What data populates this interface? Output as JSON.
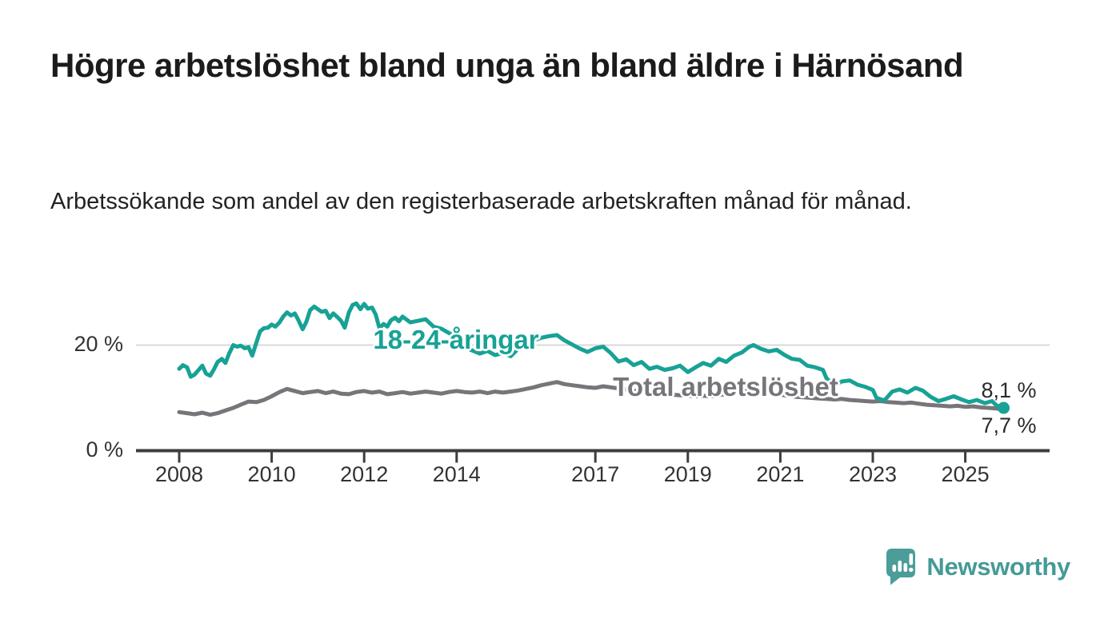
{
  "header": {
    "title": "Högre arbetslöshet bland unga än bland äldre i Härnösand",
    "subtitle": "Arbetssökande som andel av den registerbaserade arbetskraften månad för månad."
  },
  "colors": {
    "youth": "#17a295",
    "total": "#77757a",
    "grid": "#d9d9d9",
    "axis": "#3d3d40",
    "tick_text": "#333333",
    "value_text": "#2b2b2b",
    "brand": "#459a96"
  },
  "footer": {
    "brand": "Newsworthy"
  },
  "chart_data": {
    "type": "line",
    "unit": "%",
    "ylim": [
      0,
      30
    ],
    "x_range": [
      2008.0,
      2025.83
    ],
    "grid": "horizontal-only",
    "legend_position": "inline-labels-on-lines",
    "yticks": [
      {
        "value": 0,
        "label": "0 %"
      },
      {
        "value": 20,
        "label": "20 %"
      }
    ],
    "xticks": [
      2008,
      2010,
      2012,
      2014,
      2017,
      2019,
      2021,
      2023,
      2025
    ],
    "series": [
      {
        "name": "18-24-åringar",
        "color_key": "youth",
        "end_label": "8,1 %",
        "end_marker": true,
        "points": [
          [
            2008.0,
            15.5
          ],
          [
            2008.08,
            16.2
          ],
          [
            2008.17,
            15.8
          ],
          [
            2008.25,
            14.0
          ],
          [
            2008.33,
            14.4
          ],
          [
            2008.42,
            15.3
          ],
          [
            2008.5,
            16.1
          ],
          [
            2008.58,
            14.6
          ],
          [
            2008.67,
            14.2
          ],
          [
            2008.75,
            15.4
          ],
          [
            2008.83,
            16.8
          ],
          [
            2008.92,
            17.4
          ],
          [
            2009.0,
            16.6
          ],
          [
            2009.08,
            18.4
          ],
          [
            2009.17,
            20.0
          ],
          [
            2009.25,
            19.7
          ],
          [
            2009.33,
            19.9
          ],
          [
            2009.42,
            19.4
          ],
          [
            2009.5,
            19.6
          ],
          [
            2009.58,
            18.0
          ],
          [
            2009.67,
            20.5
          ],
          [
            2009.75,
            22.6
          ],
          [
            2009.83,
            23.2
          ],
          [
            2009.92,
            23.3
          ],
          [
            2010.0,
            23.9
          ],
          [
            2010.08,
            23.5
          ],
          [
            2010.17,
            24.3
          ],
          [
            2010.25,
            25.4
          ],
          [
            2010.33,
            26.2
          ],
          [
            2010.42,
            25.6
          ],
          [
            2010.5,
            26.0
          ],
          [
            2010.58,
            24.7
          ],
          [
            2010.67,
            23.0
          ],
          [
            2010.75,
            24.4
          ],
          [
            2010.83,
            26.6
          ],
          [
            2010.92,
            27.3
          ],
          [
            2011.0,
            26.8
          ],
          [
            2011.08,
            26.3
          ],
          [
            2011.17,
            26.5
          ],
          [
            2011.25,
            25.1
          ],
          [
            2011.33,
            26.0
          ],
          [
            2011.42,
            25.3
          ],
          [
            2011.5,
            24.6
          ],
          [
            2011.58,
            23.3
          ],
          [
            2011.67,
            26.2
          ],
          [
            2011.75,
            27.6
          ],
          [
            2011.83,
            27.9
          ],
          [
            2011.92,
            26.8
          ],
          [
            2012.0,
            27.8
          ],
          [
            2012.08,
            26.9
          ],
          [
            2012.17,
            27.1
          ],
          [
            2012.25,
            25.8
          ],
          [
            2012.33,
            23.2
          ],
          [
            2012.42,
            24.0
          ],
          [
            2012.5,
            23.5
          ],
          [
            2012.58,
            24.7
          ],
          [
            2012.67,
            25.2
          ],
          [
            2012.75,
            24.5
          ],
          [
            2012.83,
            25.4
          ],
          [
            2012.92,
            24.8
          ],
          [
            2013.0,
            24.3
          ],
          [
            2013.17,
            24.6
          ],
          [
            2013.33,
            24.9
          ],
          [
            2013.5,
            23.5
          ],
          [
            2013.67,
            23.1
          ],
          [
            2013.83,
            22.3
          ],
          [
            2014.0,
            21.5
          ],
          [
            2014.17,
            19.6
          ],
          [
            2014.33,
            19.0
          ],
          [
            2014.5,
            18.4
          ],
          [
            2014.67,
            18.9
          ],
          [
            2014.83,
            18.1
          ],
          [
            2015.0,
            18.5
          ],
          [
            2015.17,
            17.9
          ],
          [
            2015.33,
            19.3
          ],
          [
            2015.5,
            20.4
          ],
          [
            2015.67,
            20.9
          ],
          [
            2015.83,
            21.4
          ],
          [
            2016.0,
            21.7
          ],
          [
            2016.17,
            21.9
          ],
          [
            2016.33,
            20.9
          ],
          [
            2016.5,
            20.1
          ],
          [
            2016.67,
            19.3
          ],
          [
            2016.83,
            18.7
          ],
          [
            2017.0,
            19.4
          ],
          [
            2017.17,
            19.7
          ],
          [
            2017.33,
            18.5
          ],
          [
            2017.5,
            16.9
          ],
          [
            2017.67,
            17.3
          ],
          [
            2017.83,
            16.2
          ],
          [
            2018.0,
            16.8
          ],
          [
            2018.17,
            15.5
          ],
          [
            2018.33,
            15.9
          ],
          [
            2018.5,
            15.3
          ],
          [
            2018.67,
            15.6
          ],
          [
            2018.83,
            16.1
          ],
          [
            2019.0,
            14.9
          ],
          [
            2019.17,
            15.8
          ],
          [
            2019.33,
            16.6
          ],
          [
            2019.5,
            16.1
          ],
          [
            2019.67,
            17.4
          ],
          [
            2019.83,
            16.8
          ],
          [
            2020.0,
            18.0
          ],
          [
            2020.17,
            18.6
          ],
          [
            2020.33,
            19.7
          ],
          [
            2020.42,
            20.0
          ],
          [
            2020.58,
            19.3
          ],
          [
            2020.75,
            18.8
          ],
          [
            2020.92,
            19.1
          ],
          [
            2021.08,
            18.2
          ],
          [
            2021.25,
            17.4
          ],
          [
            2021.42,
            17.2
          ],
          [
            2021.58,
            16.1
          ],
          [
            2021.75,
            15.8
          ],
          [
            2021.92,
            15.3
          ],
          [
            2022.0,
            13.7
          ],
          [
            2022.17,
            12.4
          ],
          [
            2022.33,
            13.1
          ],
          [
            2022.5,
            13.3
          ],
          [
            2022.67,
            12.5
          ],
          [
            2022.83,
            12.1
          ],
          [
            2023.0,
            11.5
          ],
          [
            2023.08,
            10.0
          ],
          [
            2023.25,
            9.5
          ],
          [
            2023.42,
            11.2
          ],
          [
            2023.58,
            11.6
          ],
          [
            2023.75,
            11.0
          ],
          [
            2023.92,
            11.9
          ],
          [
            2024.08,
            11.4
          ],
          [
            2024.25,
            10.2
          ],
          [
            2024.42,
            9.4
          ],
          [
            2024.58,
            9.8
          ],
          [
            2024.75,
            10.3
          ],
          [
            2024.92,
            9.7
          ],
          [
            2025.08,
            9.2
          ],
          [
            2025.25,
            9.6
          ],
          [
            2025.42,
            9.0
          ],
          [
            2025.58,
            9.4
          ],
          [
            2025.67,
            8.6
          ],
          [
            2025.83,
            8.1
          ]
        ]
      },
      {
        "name": "Total arbetslöshet",
        "color_key": "total",
        "end_label": "7,7 %",
        "end_marker": false,
        "points": [
          [
            2008.0,
            7.3
          ],
          [
            2008.17,
            7.1
          ],
          [
            2008.33,
            6.9
          ],
          [
            2008.5,
            7.2
          ],
          [
            2008.67,
            6.8
          ],
          [
            2008.83,
            7.1
          ],
          [
            2009.0,
            7.6
          ],
          [
            2009.17,
            8.1
          ],
          [
            2009.33,
            8.7
          ],
          [
            2009.5,
            9.3
          ],
          [
            2009.67,
            9.2
          ],
          [
            2009.83,
            9.6
          ],
          [
            2010.0,
            10.3
          ],
          [
            2010.17,
            11.1
          ],
          [
            2010.33,
            11.7
          ],
          [
            2010.5,
            11.3
          ],
          [
            2010.67,
            10.9
          ],
          [
            2010.83,
            11.1
          ],
          [
            2011.0,
            11.3
          ],
          [
            2011.17,
            10.9
          ],
          [
            2011.33,
            11.2
          ],
          [
            2011.5,
            10.8
          ],
          [
            2011.67,
            10.7
          ],
          [
            2011.83,
            11.1
          ],
          [
            2012.0,
            11.3
          ],
          [
            2012.17,
            11.0
          ],
          [
            2012.33,
            11.2
          ],
          [
            2012.5,
            10.7
          ],
          [
            2012.67,
            10.9
          ],
          [
            2012.83,
            11.1
          ],
          [
            2013.0,
            10.8
          ],
          [
            2013.17,
            11.0
          ],
          [
            2013.33,
            11.2
          ],
          [
            2013.5,
            11.0
          ],
          [
            2013.67,
            10.8
          ],
          [
            2013.83,
            11.1
          ],
          [
            2014.0,
            11.3
          ],
          [
            2014.17,
            11.1
          ],
          [
            2014.33,
            11.0
          ],
          [
            2014.5,
            11.2
          ],
          [
            2014.67,
            10.9
          ],
          [
            2014.83,
            11.2
          ],
          [
            2015.0,
            11.0
          ],
          [
            2015.17,
            11.2
          ],
          [
            2015.33,
            11.4
          ],
          [
            2015.5,
            11.7
          ],
          [
            2015.67,
            12.0
          ],
          [
            2015.83,
            12.4
          ],
          [
            2016.0,
            12.7
          ],
          [
            2016.17,
            13.0
          ],
          [
            2016.33,
            12.6
          ],
          [
            2016.5,
            12.4
          ],
          [
            2016.67,
            12.2
          ],
          [
            2016.83,
            12.0
          ],
          [
            2017.0,
            11.9
          ],
          [
            2017.17,
            12.2
          ],
          [
            2017.33,
            12.0
          ],
          [
            2017.5,
            11.8
          ],
          [
            2017.67,
            11.6
          ],
          [
            2017.83,
            11.4
          ],
          [
            2018.0,
            11.2
          ],
          [
            2018.17,
            11.1
          ],
          [
            2018.33,
            10.9
          ],
          [
            2018.5,
            10.8
          ],
          [
            2018.67,
            10.6
          ],
          [
            2018.83,
            10.5
          ],
          [
            2019.0,
            10.4
          ],
          [
            2019.17,
            10.3
          ],
          [
            2019.33,
            10.4
          ],
          [
            2019.5,
            10.3
          ],
          [
            2019.67,
            10.5
          ],
          [
            2019.83,
            10.7
          ],
          [
            2020.0,
            10.9
          ],
          [
            2020.17,
            11.2
          ],
          [
            2020.33,
            11.4
          ],
          [
            2020.5,
            11.2
          ],
          [
            2020.67,
            11.0
          ],
          [
            2020.83,
            10.8
          ],
          [
            2021.0,
            10.6
          ],
          [
            2021.17,
            10.4
          ],
          [
            2021.33,
            10.2
          ],
          [
            2021.5,
            10.1
          ],
          [
            2021.67,
            10.0
          ],
          [
            2021.83,
            9.9
          ],
          [
            2022.0,
            9.8
          ],
          [
            2022.17,
            9.7
          ],
          [
            2022.33,
            9.8
          ],
          [
            2022.5,
            9.6
          ],
          [
            2022.67,
            9.5
          ],
          [
            2022.83,
            9.4
          ],
          [
            2023.0,
            9.3
          ],
          [
            2023.17,
            9.4
          ],
          [
            2023.33,
            9.2
          ],
          [
            2023.5,
            9.1
          ],
          [
            2023.67,
            9.0
          ],
          [
            2023.83,
            9.1
          ],
          [
            2024.0,
            8.9
          ],
          [
            2024.17,
            8.7
          ],
          [
            2024.33,
            8.6
          ],
          [
            2024.5,
            8.5
          ],
          [
            2024.67,
            8.4
          ],
          [
            2024.83,
            8.5
          ],
          [
            2025.0,
            8.3
          ],
          [
            2025.17,
            8.4
          ],
          [
            2025.33,
            8.2
          ],
          [
            2025.5,
            8.1
          ],
          [
            2025.67,
            8.0
          ],
          [
            2025.83,
            7.7
          ]
        ]
      }
    ]
  }
}
